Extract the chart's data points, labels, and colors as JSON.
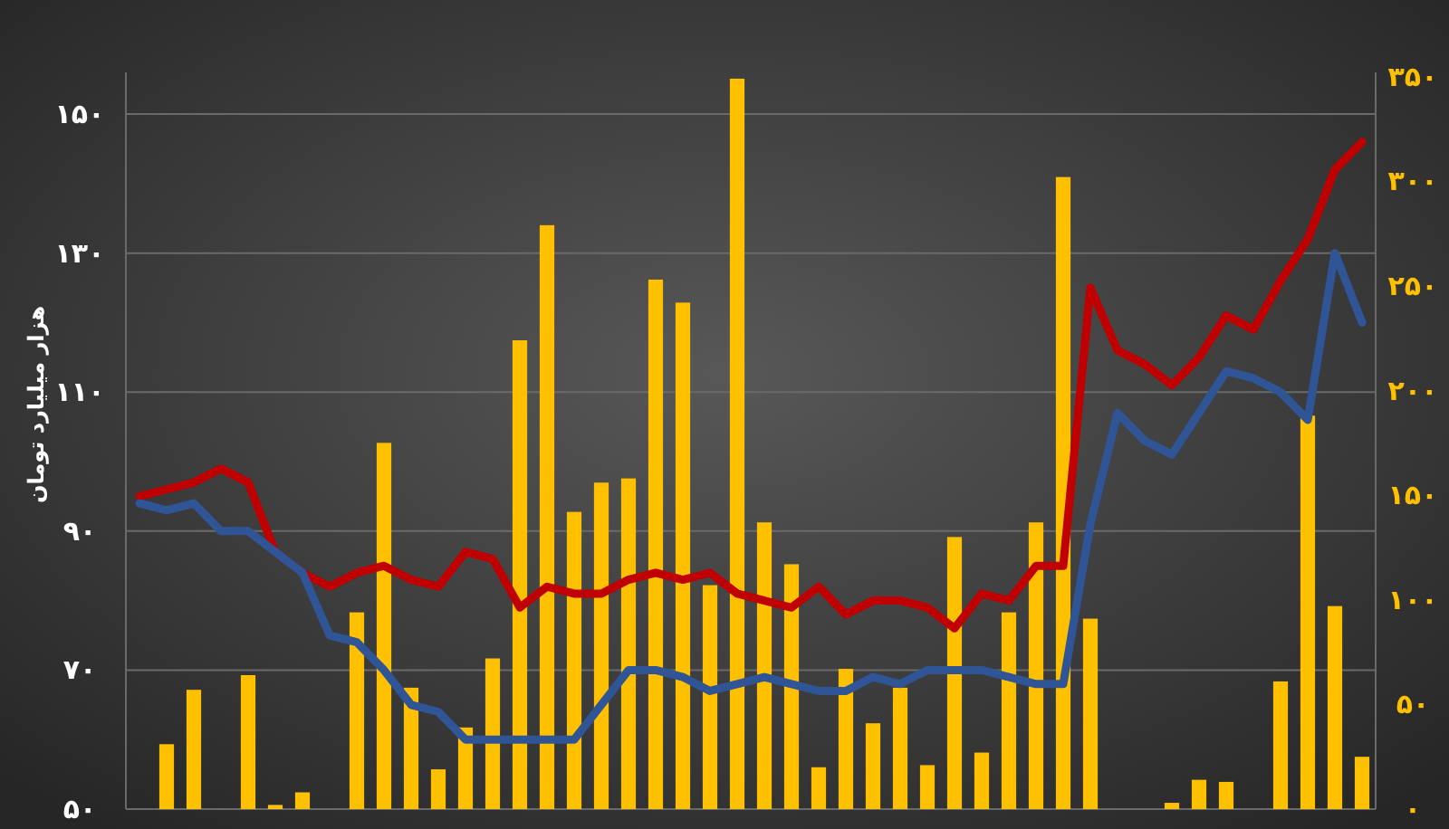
{
  "chart_data": {
    "type": "bar",
    "ylabel": "هزار میلیارد تومان",
    "categories": [
      null,
      null,
      null,
      null,
      null,
      null,
      null,
      null,
      null,
      null,
      null,
      null,
      null,
      null,
      null,
      null,
      null,
      null,
      null,
      null,
      null,
      null,
      null,
      null,
      null,
      null,
      null,
      null,
      null,
      null,
      null,
      null,
      null,
      null,
      null,
      null,
      null,
      null,
      null,
      null,
      null,
      null,
      null,
      null,
      null,
      null
    ],
    "series": [
      {
        "axis": "y2",
        "color": "#ffc000",
        "values": [
          0,
          31,
          57,
          0,
          64,
          2,
          8,
          0,
          94,
          175,
          58,
          19,
          39,
          72,
          224,
          279,
          142,
          156,
          158,
          253,
          242,
          107,
          349,
          137,
          117,
          20,
          67,
          41,
          58,
          21,
          130,
          27,
          94,
          137,
          302,
          91,
          0,
          0,
          3,
          14,
          13,
          0,
          61,
          188,
          97,
          25
        ]
      },
      {
        "type": "line",
        "color": "#c00000",
        "values": [
          95,
          96,
          97,
          99,
          97,
          87,
          84,
          82,
          84,
          85,
          83,
          82,
          87,
          86,
          79,
          82,
          81,
          81,
          83,
          84,
          83,
          84,
          81,
          80,
          79,
          82,
          78,
          80,
          80,
          79,
          76,
          81,
          80,
          85,
          85,
          125,
          116,
          114,
          111,
          115,
          121,
          119,
          126,
          132,
          142,
          146
        ]
      },
      {
        "type": "line",
        "color": "#2f5597",
        "values": [
          94,
          93,
          94,
          90,
          90,
          87,
          84,
          75,
          74,
          70,
          65,
          64,
          60,
          60,
          60,
          60,
          60,
          65,
          70,
          70,
          69,
          67,
          68,
          69,
          68,
          67,
          67,
          69,
          68,
          70,
          70,
          70,
          69,
          68,
          68,
          91,
          107,
          103,
          101,
          107,
          113,
          112,
          110,
          106,
          130,
          120
        ]
      }
    ],
    "ylim": [
      50,
      156
    ],
    "yticks": [
      {
        "value": 50,
        "label": "۵۰"
      },
      {
        "value": 70,
        "label": "۷۰"
      },
      {
        "value": 90,
        "label": "۹۰"
      },
      {
        "value": 110,
        "label": "۱۱۰"
      },
      {
        "value": 130,
        "label": "۱۳۰"
      },
      {
        "value": 150,
        "label": "۱۵۰"
      }
    ],
    "y2lim": [
      0,
      352
    ],
    "y2ticks": [
      {
        "value": 0,
        "label": "۰"
      },
      {
        "value": 50,
        "label": "۵۰"
      },
      {
        "value": 100,
        "label": "۱۰۰"
      },
      {
        "value": 150,
        "label": "۱۵۰"
      },
      {
        "value": 200,
        "label": "۲۰۰"
      },
      {
        "value": 250,
        "label": "۲۵۰"
      },
      {
        "value": 300,
        "label": "۳۰۰"
      },
      {
        "value": 350,
        "label": "۳۵۰"
      }
    ],
    "grid": "y"
  }
}
